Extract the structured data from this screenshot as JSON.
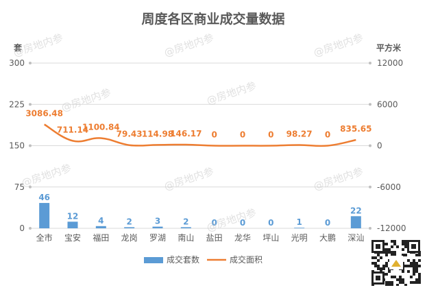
{
  "watermark": "@房地内参",
  "colors": {
    "bar": "#5b9bd5",
    "line": "#ed7d31",
    "title": "#595959",
    "axis_text": "#595959",
    "grid": "#d9d9d9",
    "bar_label": "#5b9bd5",
    "line_label": "#ed7d31"
  },
  "chart_data": {
    "type": "bar",
    "title": "周度各区商业成交量数据",
    "ylabel_left": "套",
    "ylabel_right": "平方米",
    "categories": [
      "全市",
      "宝安",
      "福田",
      "龙岗",
      "罗湖",
      "南山",
      "盐田",
      "龙华",
      "坪山",
      "光明",
      "大鹏",
      "深汕"
    ],
    "series": [
      {
        "name": "成交套数",
        "type": "bar",
        "axis": "left",
        "values": [
          46,
          12,
          4,
          2,
          3,
          2,
          0,
          0,
          0,
          1,
          0,
          22
        ],
        "labels": [
          "46",
          "12",
          "4",
          "2",
          "3",
          "2",
          "0",
          "0",
          "0",
          "1",
          "0",
          "22"
        ]
      },
      {
        "name": "成交面积",
        "type": "line",
        "axis": "right",
        "values": [
          3086.48,
          711.14,
          1100.84,
          79.43,
          114.98,
          146.17,
          0,
          0,
          0,
          98.27,
          0,
          835.65
        ],
        "labels": [
          "3086.48",
          "711.14",
          "1100.84",
          "79.43",
          "114.98",
          "146.17",
          "0",
          "0",
          "0",
          "98.27",
          "0",
          "835.65"
        ]
      }
    ],
    "ylim_left": [
      0,
      300
    ],
    "yticks_left": [
      "0",
      "75",
      "150",
      "225",
      "300"
    ],
    "ylim_right": [
      -12000,
      12000
    ],
    "yticks_right": [
      "-12000",
      "-6000",
      "0",
      "6000",
      "12000"
    ],
    "grid": true,
    "legend_position": "bottom"
  }
}
